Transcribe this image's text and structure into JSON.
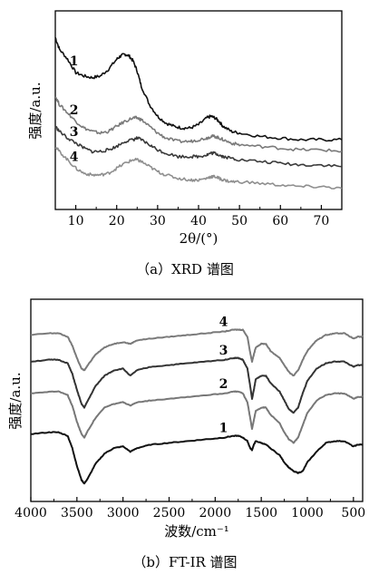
{
  "chart_data": [
    {
      "id": "xrd",
      "type": "line",
      "caption": "（a）XRD 谱图",
      "xlabel": "2θ/(°)",
      "ylabel": "强度/a.u.",
      "xlim": [
        5,
        75
      ],
      "xticks": [
        10,
        20,
        30,
        40,
        50,
        60,
        70
      ],
      "ylim": [
        0,
        1
      ],
      "yticks_shown": false,
      "grid": false,
      "series": [
        {
          "name": "1",
          "color": "#111111",
          "x": [
            5,
            6,
            8,
            10,
            12,
            14,
            16,
            18,
            20,
            21,
            22,
            23,
            24,
            25,
            26,
            28,
            30,
            32,
            34,
            36,
            38,
            40,
            42,
            43,
            44,
            45,
            46,
            48,
            50,
            55,
            60,
            65,
            70,
            75
          ],
          "y": [
            0.95,
            0.88,
            0.82,
            0.74,
            0.72,
            0.71,
            0.72,
            0.76,
            0.82,
            0.84,
            0.85,
            0.84,
            0.81,
            0.75,
            0.66,
            0.55,
            0.48,
            0.44,
            0.42,
            0.41,
            0.41,
            0.43,
            0.47,
            0.48,
            0.47,
            0.45,
            0.42,
            0.39,
            0.38,
            0.36,
            0.35,
            0.34,
            0.34,
            0.34
          ]
        },
        {
          "name": "2",
          "color": "#7a7a7a",
          "x": [
            5,
            6,
            8,
            10,
            12,
            14,
            16,
            18,
            20,
            22,
            24,
            25,
            26,
            28,
            30,
            32,
            35,
            38,
            40,
            42,
            43,
            44,
            45,
            46,
            48,
            50,
            55,
            60,
            65,
            70,
            75
          ],
          "y": [
            0.6,
            0.55,
            0.5,
            0.45,
            0.41,
            0.39,
            0.38,
            0.39,
            0.42,
            0.45,
            0.47,
            0.47,
            0.46,
            0.42,
            0.38,
            0.35,
            0.33,
            0.33,
            0.34,
            0.35,
            0.36,
            0.36,
            0.35,
            0.34,
            0.32,
            0.31,
            0.3,
            0.29,
            0.28,
            0.28,
            0.27
          ]
        },
        {
          "name": "3",
          "color": "#3a3a3a",
          "x": [
            5,
            6,
            8,
            10,
            12,
            14,
            16,
            18,
            20,
            22,
            24,
            25,
            26,
            28,
            30,
            32,
            35,
            38,
            40,
            42,
            43,
            44,
            45,
            46,
            48,
            50,
            55,
            60,
            65,
            70,
            75
          ],
          "y": [
            0.42,
            0.39,
            0.35,
            0.32,
            0.29,
            0.27,
            0.27,
            0.28,
            0.3,
            0.33,
            0.34,
            0.35,
            0.34,
            0.31,
            0.28,
            0.26,
            0.24,
            0.24,
            0.24,
            0.25,
            0.26,
            0.26,
            0.25,
            0.24,
            0.23,
            0.22,
            0.21,
            0.2,
            0.19,
            0.19,
            0.18
          ]
        },
        {
          "name": "4",
          "color": "#8f8f8f",
          "x": [
            5,
            6,
            8,
            10,
            12,
            14,
            16,
            18,
            20,
            22,
            24,
            25,
            26,
            28,
            30,
            32,
            35,
            38,
            40,
            42,
            43,
            44,
            45,
            46,
            48,
            50,
            55,
            60,
            65,
            70,
            75
          ],
          "y": [
            0.3,
            0.27,
            0.22,
            0.17,
            0.14,
            0.13,
            0.13,
            0.14,
            0.17,
            0.2,
            0.22,
            0.22,
            0.21,
            0.18,
            0.15,
            0.13,
            0.11,
            0.1,
            0.1,
            0.11,
            0.12,
            0.12,
            0.11,
            0.1,
            0.09,
            0.09,
            0.08,
            0.07,
            0.06,
            0.06,
            0.05
          ]
        }
      ]
    },
    {
      "id": "ftir",
      "type": "line",
      "caption": "（b）FT-IR 谱图",
      "xlabel": "波数/cm⁻¹",
      "ylabel": "强度/a.u.",
      "xlim": [
        4000,
        400
      ],
      "x_reversed": true,
      "xticks": [
        4000,
        3500,
        3000,
        2500,
        2000,
        1500,
        1000,
        500
      ],
      "ylim": [
        0,
        1
      ],
      "yticks_shown": false,
      "grid": false,
      "series": [
        {
          "name": "4",
          "color": "#7a7a7a",
          "x": [
            4000,
            3800,
            3700,
            3600,
            3550,
            3500,
            3450,
            3420,
            3380,
            3300,
            3200,
            3100,
            3000,
            2920,
            2850,
            2700,
            2500,
            2300,
            2100,
            1900,
            1800,
            1750,
            1700,
            1650,
            1620,
            1600,
            1580,
            1560,
            1500,
            1450,
            1400,
            1300,
            1250,
            1200,
            1150,
            1100,
            1050,
            1000,
            900,
            800,
            700,
            600,
            500,
            450,
            400
          ],
          "y": [
            0.89,
            0.9,
            0.9,
            0.88,
            0.83,
            0.76,
            0.7,
            0.69,
            0.72,
            0.78,
            0.82,
            0.84,
            0.85,
            0.84,
            0.86,
            0.87,
            0.88,
            0.89,
            0.9,
            0.91,
            0.92,
            0.92,
            0.92,
            0.88,
            0.79,
            0.74,
            0.78,
            0.82,
            0.84,
            0.84,
            0.8,
            0.76,
            0.72,
            0.68,
            0.66,
            0.69,
            0.75,
            0.8,
            0.86,
            0.89,
            0.9,
            0.9,
            0.87,
            0.88,
            0.88
          ]
        },
        {
          "name": "3",
          "color": "#333333",
          "x": [
            4000,
            3800,
            3700,
            3600,
            3550,
            3500,
            3450,
            3420,
            3380,
            3300,
            3200,
            3100,
            3000,
            2920,
            2850,
            2700,
            2500,
            2300,
            2100,
            1900,
            1800,
            1750,
            1700,
            1650,
            1620,
            1600,
            1580,
            1560,
            1500,
            1450,
            1400,
            1300,
            1250,
            1200,
            1150,
            1100,
            1050,
            1000,
            900,
            800,
            700,
            600,
            500,
            450,
            400
          ],
          "y": [
            0.74,
            0.75,
            0.75,
            0.73,
            0.67,
            0.58,
            0.5,
            0.48,
            0.52,
            0.6,
            0.66,
            0.69,
            0.7,
            0.66,
            0.69,
            0.71,
            0.72,
            0.73,
            0.74,
            0.75,
            0.76,
            0.76,
            0.75,
            0.7,
            0.6,
            0.53,
            0.58,
            0.64,
            0.66,
            0.66,
            0.62,
            0.57,
            0.52,
            0.47,
            0.45,
            0.48,
            0.56,
            0.63,
            0.7,
            0.73,
            0.74,
            0.74,
            0.71,
            0.72,
            0.72
          ]
        },
        {
          "name": "2",
          "color": "#777777",
          "x": [
            4000,
            3800,
            3700,
            3600,
            3550,
            3500,
            3450,
            3420,
            3380,
            3300,
            3200,
            3100,
            3000,
            2920,
            2850,
            2700,
            2500,
            2300,
            2100,
            1900,
            1800,
            1750,
            1700,
            1650,
            1620,
            1600,
            1580,
            1560,
            1500,
            1450,
            1400,
            1300,
            1250,
            1200,
            1150,
            1100,
            1050,
            1000,
            900,
            800,
            700,
            600,
            500,
            450,
            400
          ],
          "y": [
            0.56,
            0.57,
            0.57,
            0.55,
            0.49,
            0.4,
            0.33,
            0.31,
            0.35,
            0.42,
            0.48,
            0.5,
            0.51,
            0.49,
            0.51,
            0.52,
            0.53,
            0.54,
            0.55,
            0.56,
            0.57,
            0.57,
            0.56,
            0.51,
            0.42,
            0.36,
            0.41,
            0.46,
            0.48,
            0.48,
            0.44,
            0.39,
            0.34,
            0.3,
            0.28,
            0.31,
            0.38,
            0.45,
            0.52,
            0.55,
            0.56,
            0.56,
            0.53,
            0.54,
            0.54
          ]
        },
        {
          "name": "1",
          "color": "#111111",
          "x": [
            4000,
            3800,
            3700,
            3600,
            3550,
            3500,
            3450,
            3420,
            3380,
            3300,
            3200,
            3100,
            3000,
            2920,
            2850,
            2700,
            2500,
            2300,
            2100,
            1900,
            1800,
            1750,
            1700,
            1650,
            1620,
            1600,
            1580,
            1560,
            1500,
            1450,
            1400,
            1300,
            1250,
            1200,
            1150,
            1100,
            1050,
            1000,
            900,
            800,
            700,
            600,
            500,
            450,
            400
          ],
          "y": [
            0.33,
            0.34,
            0.34,
            0.32,
            0.25,
            0.15,
            0.07,
            0.05,
            0.08,
            0.16,
            0.22,
            0.25,
            0.26,
            0.23,
            0.25,
            0.27,
            0.28,
            0.29,
            0.3,
            0.31,
            0.32,
            0.32,
            0.31,
            0.29,
            0.25,
            0.24,
            0.27,
            0.29,
            0.28,
            0.27,
            0.25,
            0.21,
            0.17,
            0.14,
            0.12,
            0.11,
            0.12,
            0.17,
            0.23,
            0.28,
            0.29,
            0.29,
            0.26,
            0.27,
            0.27
          ]
        }
      ]
    }
  ]
}
